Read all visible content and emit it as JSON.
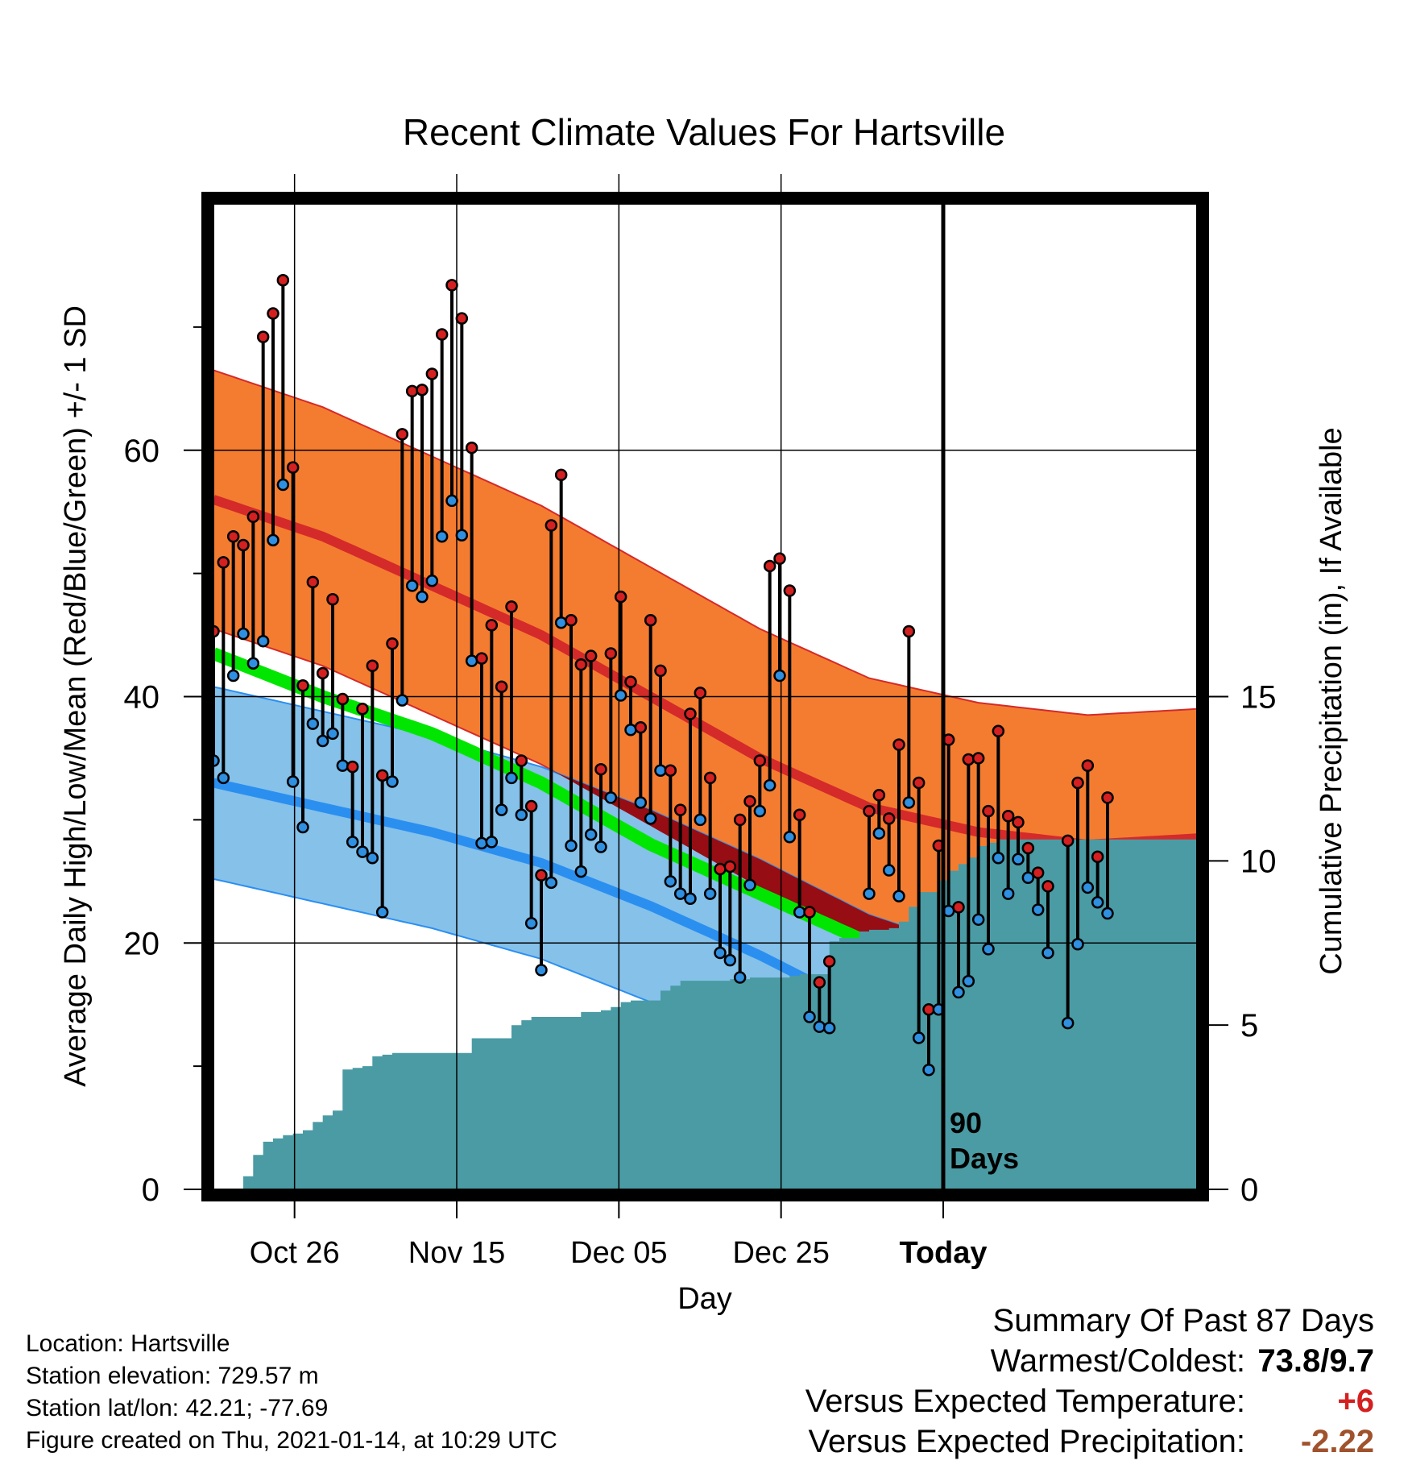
{
  "chart_data": {
    "type": "line",
    "title": "Recent Climate Values For Hartsville",
    "xlabel": "Day",
    "ylabel": "Average Daily High/Low/Mean (Red/Blue/Green) +/- 1 SD",
    "y2label": "Cumulative Precipitation (in), If Available",
    "x_ticks": [
      "Oct 26",
      "Nov 15",
      "Dec 05",
      "Dec 25",
      "Today"
    ],
    "ylim": [
      0,
      80
    ],
    "y_ticks": [
      0,
      20,
      40,
      60
    ],
    "y2lim": [
      0,
      30
    ],
    "y2_ticks": [
      0,
      5,
      10,
      15
    ],
    "grid": true,
    "marker_label": "90 Days",
    "normals": {
      "high_mean": [
        56,
        53,
        49,
        45,
        40,
        35,
        31,
        29,
        28,
        28.5
      ],
      "high_sd": 10.5,
      "low_mean": [
        33,
        31,
        29,
        26.5,
        23,
        19,
        14.5,
        11.5,
        11,
        11.5
      ],
      "low_sd": 7.8,
      "mean": [
        43.5,
        40,
        37,
        33,
        28,
        24,
        20,
        18,
        17.5,
        18
      ]
    },
    "series": [
      {
        "name": "High",
        "values": [
          45.3,
          50.9,
          53.0,
          52.3,
          54.6,
          69.2,
          71.1,
          73.8,
          58.6,
          40.9,
          49.3,
          41.9,
          47.9,
          39.8,
          34.3,
          39.0,
          42.5,
          33.6,
          44.3,
          61.3,
          64.8,
          64.9,
          66.2,
          69.4,
          73.4,
          70.7,
          60.2,
          43.1,
          45.8,
          40.8,
          47.3,
          34.8,
          31.1,
          25.5,
          53.9,
          58.0,
          46.2,
          42.6,
          43.3,
          34.1,
          43.5,
          48.1,
          41.2,
          37.5,
          46.2,
          42.1,
          34.0,
          30.8,
          38.6,
          40.3,
          33.4,
          26.0,
          26.2,
          30.0,
          31.5,
          34.8,
          50.6,
          51.2,
          48.6,
          30.4,
          22.5,
          16.8,
          18.5,
          null,
          null,
          null,
          30.7,
          32.0,
          30.1,
          36.1,
          45.3,
          33.0,
          14.6,
          27.9,
          36.5,
          22.9,
          34.9,
          35.0,
          30.7,
          37.2,
          30.3,
          29.8,
          27.7,
          25.7,
          24.6,
          null,
          28.3,
          33.0,
          34.4,
          27.0,
          31.8
        ]
      },
      {
        "name": "Low",
        "values": [
          34.8,
          33.4,
          41.7,
          45.1,
          42.7,
          44.5,
          52.7,
          57.2,
          33.1,
          29.4,
          37.8,
          36.4,
          37.0,
          34.4,
          28.2,
          27.4,
          26.9,
          22.5,
          33.1,
          39.7,
          49.0,
          48.1,
          49.4,
          53.0,
          55.9,
          53.1,
          42.9,
          28.1,
          28.2,
          30.8,
          33.4,
          30.4,
          21.6,
          17.8,
          24.9,
          46.0,
          27.9,
          25.8,
          28.8,
          27.8,
          31.8,
          40.1,
          37.3,
          31.4,
          30.1,
          34.0,
          25.0,
          24.0,
          23.6,
          30.0,
          24.0,
          19.2,
          18.6,
          17.2,
          24.7,
          30.7,
          32.8,
          41.7,
          28.6,
          22.5,
          14.0,
          13.2,
          13.1,
          null,
          null,
          null,
          24.0,
          28.9,
          25.9,
          23.8,
          31.4,
          12.3,
          9.7,
          14.6,
          22.6,
          16.0,
          16.9,
          21.9,
          19.5,
          26.9,
          24.0,
          26.8,
          25.3,
          22.7,
          19.2,
          null,
          13.5,
          19.9,
          24.5,
          23.3,
          22.4
        ]
      },
      {
        "name": "Precip",
        "values": [
          0,
          0,
          0,
          0.4,
          1.05,
          1.45,
          1.55,
          1.65,
          1.7,
          1.8,
          2.05,
          2.25,
          2.4,
          3.65,
          3.7,
          3.75,
          4.05,
          4.1,
          4.15,
          4.15,
          4.15,
          4.15,
          4.15,
          4.15,
          4.15,
          4.15,
          4.6,
          4.6,
          4.6,
          4.6,
          5.0,
          5.15,
          5.25,
          5.25,
          5.25,
          5.25,
          5.25,
          5.4,
          5.4,
          5.45,
          5.55,
          5.7,
          5.75,
          5.75,
          5.75,
          6.05,
          6.2,
          6.35,
          6.35,
          6.35,
          6.35,
          6.35,
          6.4,
          6.4,
          6.45,
          6.45,
          6.45,
          6.45,
          6.5,
          6.55,
          6.55,
          6.55,
          7.55,
          7.65,
          7.65,
          7.85,
          7.9,
          7.9,
          7.95,
          8.15,
          8.6,
          9.05,
          9.05,
          9.4,
          9.7,
          9.9,
          10.1,
          10.45,
          10.55,
          10.65,
          10.65,
          10.65,
          10.65,
          10.65,
          10.65,
          10.65,
          10.65,
          10.65,
          10.65,
          10.65,
          10.65,
          10.65,
          10.65,
          10.65,
          10.65,
          10.65,
          10.65,
          10.65,
          10.65,
          10.65
        ]
      }
    ],
    "summary_days": 87
  },
  "info": {
    "location": "Location: Hartsville",
    "elevation": "Station elevation: 729.57 m",
    "latlon": "Station lat/lon: 42.21; -77.69",
    "created": "Figure created on Thu, 2021-01-14, at 10:29 UTC"
  },
  "summary": {
    "title": "Summary Of Past 87 Days",
    "warm_cold_label": "Warmest/Coldest:",
    "warm_cold_value": "73.8/9.7",
    "temp_label": "Versus Expected Temperature:",
    "temp_value": "+6",
    "precip_label": "Versus Expected Precipitation:",
    "precip_value": "-2.22"
  },
  "colors": {
    "high_band": "#f47c30",
    "high_line": "#d42a2a",
    "low_band": "#85c1e9",
    "low_line": "#2b8ff0",
    "overlap": "#960d14",
    "mean_line": "#00e600",
    "precip": "#4a9ba4",
    "high_dot": "#d42020",
    "low_dot": "#2f8fe0"
  }
}
